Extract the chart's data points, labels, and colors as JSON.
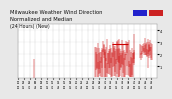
{
  "title_line1": "Milwaukee Weather Wind Direction",
  "title_line2": "Normalized and Median",
  "title_line3": "(24 Hours) (New)",
  "bg_color": "#e8e8e8",
  "plot_bg_color": "#ffffff",
  "grid_color": "#bbbbbb",
  "line_color": "#cc0000",
  "legend_color1": "#2222cc",
  "legend_color2": "#cc2222",
  "ylim": [
    0.0,
    4.5
  ],
  "ytick_vals": [
    1,
    2,
    3,
    4
  ],
  "n_points": 288,
  "title_fontsize": 3.8,
  "tick_fontsize": 2.5
}
